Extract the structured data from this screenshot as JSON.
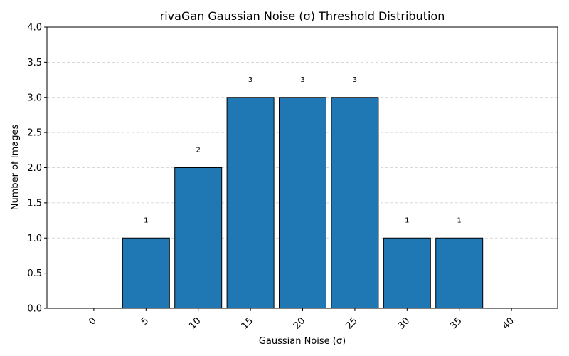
{
  "chart_data": {
    "type": "bar",
    "title": "rivaGan Gaussian Noise (σ) Threshold Distribution",
    "xlabel": "Gaussian Noise (σ)",
    "ylabel": "Number of Images",
    "categories": [
      "0",
      "5",
      "10",
      "15",
      "20",
      "25",
      "30",
      "35",
      "40"
    ],
    "values": [
      0,
      1,
      2,
      3,
      3,
      3,
      1,
      1,
      0
    ],
    "data_labels": [
      "",
      "1",
      "2",
      "3",
      "3",
      "3",
      "1",
      "1",
      ""
    ],
    "ylim": [
      0,
      4
    ],
    "yticks": [
      "0.0",
      "0.5",
      "1.0",
      "1.5",
      "2.0",
      "2.5",
      "3.0",
      "3.5",
      "4.0"
    ],
    "grid": "y-dashed",
    "bar_color": "#1f77b4",
    "edge_color": "#000000",
    "x_tick_rotation": "45"
  }
}
